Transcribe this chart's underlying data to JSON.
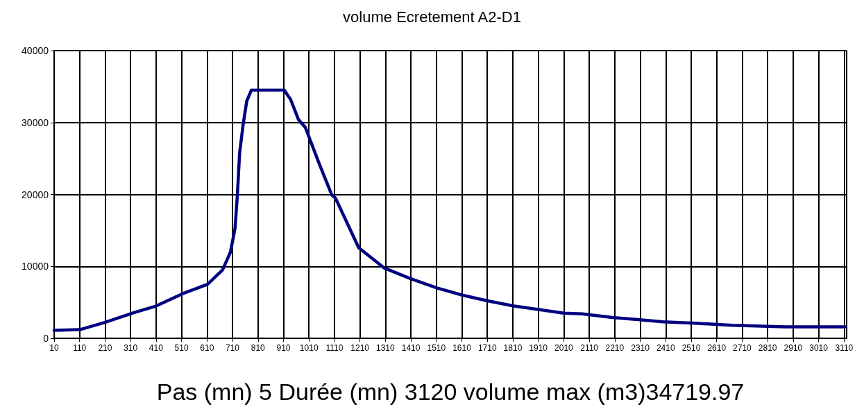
{
  "chart_data": {
    "type": "line",
    "title": "volume Ecretement A2-D1",
    "xlabel": "Pas (mn) 5 Durée (mn) 3120 volume max (m3)34719.97",
    "x": [
      10,
      110,
      209,
      318,
      411,
      514,
      612,
      671,
      702,
      720,
      729,
      738,
      752,
      766,
      784,
      913,
      938,
      969,
      996,
      1051,
      1100,
      1114,
      1205,
      1304,
      1408,
      1512,
      1612,
      1711,
      1811,
      1911,
      2010,
      2082,
      2200,
      2300,
      2399,
      2526,
      2671,
      2879,
      3114
    ],
    "series": [
      {
        "color": "#000080",
        "values": [
          1100,
          1200,
          2200,
          3500,
          4500,
          6200,
          7500,
          9500,
          12000,
          15300,
          19900,
          25800,
          29800,
          33000,
          34500,
          34500,
          33200,
          30400,
          29300,
          24200,
          19900,
          19500,
          12600,
          9800,
          8300,
          7000,
          6000,
          5200,
          4500,
          4000,
          3500,
          3400,
          2900,
          2600,
          2300,
          2100,
          1800,
          1600,
          1600
        ]
      }
    ],
    "xlim": [
      10,
      3120
    ],
    "xticks": [
      10,
      110,
      210,
      310,
      410,
      510,
      610,
      710,
      810,
      910,
      1010,
      1110,
      1210,
      1310,
      1410,
      1510,
      1610,
      1710,
      1810,
      1910,
      2010,
      2110,
      2210,
      2310,
      2410,
      2510,
      2610,
      2710,
      2810,
      2910,
      3010,
      3110
    ],
    "ylim": [
      0,
      40000
    ],
    "yticks": [
      0,
      10000,
      20000,
      30000,
      40000
    ],
    "grid": true,
    "marker": "none",
    "line_style": "solid"
  }
}
